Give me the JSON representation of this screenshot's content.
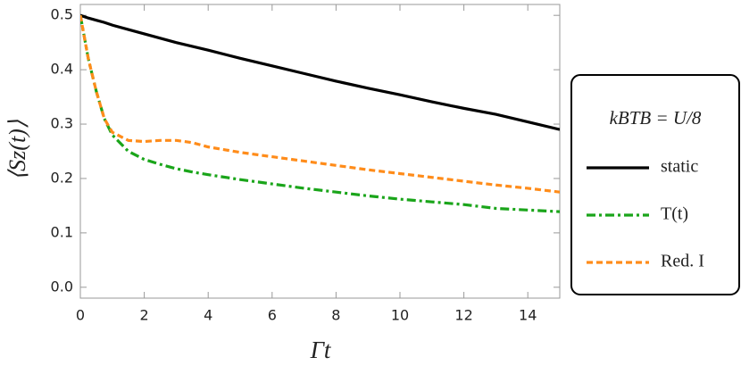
{
  "chart_data": {
    "type": "line",
    "x_label": "Γt",
    "y_label": "⟨Sz(t)⟩",
    "legend_title": "kBTB = U/8",
    "x": [
      0,
      0.25,
      0.5,
      0.75,
      1,
      1.5,
      2,
      2.5,
      3,
      3.5,
      4,
      5,
      6,
      7,
      8,
      9,
      10,
      11,
      12,
      13,
      14,
      15
    ],
    "series": [
      {
        "name": "static",
        "color": "#000000",
        "style": "solid",
        "values": [
          0.5,
          0.495,
          0.491,
          0.487,
          0.482,
          0.474,
          0.466,
          0.458,
          0.45,
          0.443,
          0.436,
          0.421,
          0.407,
          0.393,
          0.379,
          0.366,
          0.354,
          0.341,
          0.329,
          0.318,
          0.304,
          0.29
        ]
      },
      {
        "name": "T(t)",
        "color": "#1aa51a",
        "style": "dashdot",
        "values": [
          0.5,
          0.42,
          0.36,
          0.31,
          0.28,
          0.25,
          0.235,
          0.226,
          0.218,
          0.212,
          0.207,
          0.198,
          0.19,
          0.182,
          0.175,
          0.168,
          0.162,
          0.157,
          0.152,
          0.145,
          0.142,
          0.139
        ]
      },
      {
        "name": "Red. I",
        "color": "#ff8c1a",
        "style": "dashed",
        "values": [
          0.5,
          0.42,
          0.36,
          0.31,
          0.285,
          0.27,
          0.268,
          0.27,
          0.27,
          0.266,
          0.258,
          0.248,
          0.24,
          0.232,
          0.224,
          0.216,
          0.209,
          0.202,
          0.195,
          0.188,
          0.182,
          0.175
        ]
      }
    ],
    "xlim": [
      0,
      15
    ],
    "ylim": [
      -0.02,
      0.52
    ],
    "xticks": [
      0,
      2,
      4,
      6,
      8,
      10,
      12,
      14
    ],
    "yticks": [
      {
        "value": 0,
        "label": "0.0"
      },
      0.1,
      0.2,
      0.3,
      0.4,
      0.5
    ],
    "grid": false
  }
}
